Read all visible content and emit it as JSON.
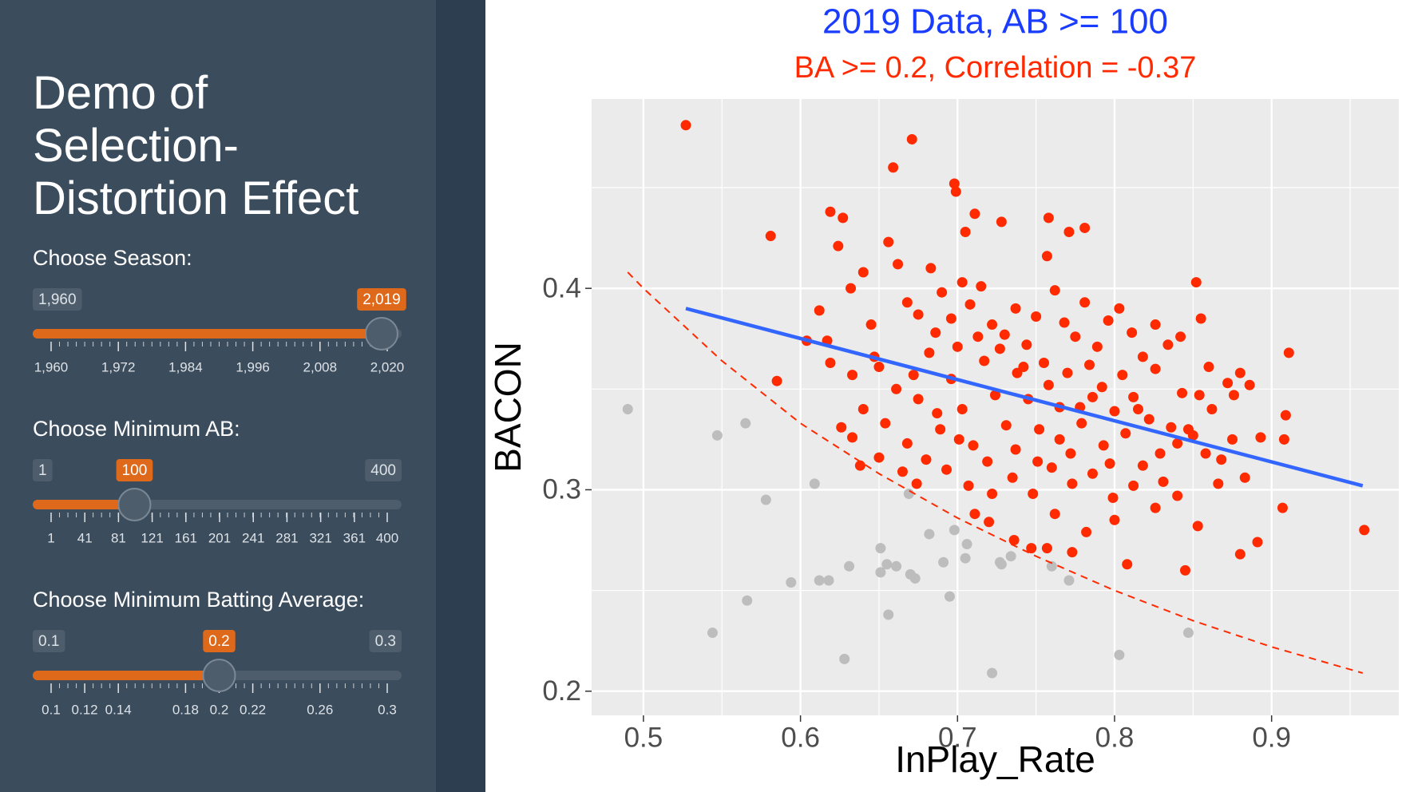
{
  "sidebar": {
    "title": "Demo of Selection-Distortion Effect",
    "sliders": [
      {
        "label": "Choose Season:",
        "min": {
          "value": 1960,
          "label": "1,960"
        },
        "value": {
          "value": 2019,
          "label": "2,019"
        },
        "ticks": [
          {
            "value": 1960,
            "label": "1,960"
          },
          {
            "value": 1972,
            "label": "1,972"
          },
          {
            "value": 1984,
            "label": "1,984"
          },
          {
            "value": 1996,
            "label": "1,996"
          },
          {
            "value": 2008,
            "label": "2,008"
          },
          {
            "value": 2020,
            "label": "2,020"
          }
        ]
      },
      {
        "label": "Choose Minimum AB:",
        "min": 1,
        "max": 400,
        "value": 100,
        "ticks": [
          1,
          41,
          81,
          121,
          161,
          201,
          241,
          281,
          321,
          361,
          400
        ]
      },
      {
        "label": "Choose Minimum Batting Average:",
        "min": 0.1,
        "max": 0.3,
        "value": 0.2,
        "ticks": [
          0.1,
          0.12,
          0.14,
          0.18,
          0.2,
          0.22,
          0.26,
          0.3
        ]
      }
    ]
  },
  "chart_data": {
    "type": "scatter",
    "title": "2019 Data, AB >= 100",
    "subtitle": "BA >= 0.2, Correlation = -0.37",
    "title_color": "#1a3cff",
    "subtitle_color": "#ff2a00",
    "x_label": "InPlay_Rate",
    "y_label": "BACON",
    "xlim": [
      0.467,
      0.981
    ],
    "ylim": [
      0.188,
      0.494
    ],
    "xticks": [
      0.5,
      0.6,
      0.7,
      0.8,
      0.9
    ],
    "yticks": [
      0.2,
      0.3,
      0.4
    ],
    "grid": true,
    "series": [
      {
        "color": "#bdbdbd",
        "x": [
          0.49,
          0.547,
          0.565,
          0.578,
          0.609,
          0.594,
          0.566,
          0.544,
          0.612,
          0.618,
          0.631,
          0.628,
          0.651,
          0.651,
          0.655,
          0.661,
          0.656,
          0.67,
          0.673,
          0.669,
          0.682,
          0.691,
          0.698,
          0.706,
          0.705,
          0.695,
          0.722,
          0.727,
          0.728,
          0.734,
          0.76,
          0.771,
          0.803,
          0.847
        ],
        "y": [
          0.34,
          0.327,
          0.333,
          0.295,
          0.303,
          0.254,
          0.245,
          0.229,
          0.255,
          0.255,
          0.262,
          0.216,
          0.271,
          0.259,
          0.263,
          0.262,
          0.238,
          0.258,
          0.256,
          0.298,
          0.278,
          0.264,
          0.28,
          0.273,
          0.266,
          0.247,
          0.209,
          0.264,
          0.263,
          0.267,
          0.262,
          0.255,
          0.218,
          0.229
        ]
      },
      {
        "color": "#ff2a00",
        "x": [
          0.527,
          0.581,
          0.585,
          0.671,
          0.659,
          0.619,
          0.627,
          0.624,
          0.656,
          0.698,
          0.699,
          0.711,
          0.728,
          0.758,
          0.771,
          0.781,
          0.705,
          0.959,
          0.911,
          0.907,
          0.845,
          0.808,
          0.757,
          0.773,
          0.747,
          0.72,
          0.711,
          0.674,
          0.638,
          0.88,
          0.883,
          0.891,
          0.604,
          0.612,
          0.617,
          0.632,
          0.64,
          0.645,
          0.65,
          0.662,
          0.668,
          0.675,
          0.683,
          0.69,
          0.696,
          0.703,
          0.708,
          0.715,
          0.722,
          0.73,
          0.737,
          0.744,
          0.75,
          0.757,
          0.762,
          0.768,
          0.775,
          0.781,
          0.789,
          0.796,
          0.803,
          0.811,
          0.818,
          0.826,
          0.834,
          0.842,
          0.852,
          0.855,
          0.86,
          0.872,
          0.88,
          0.886,
          0.893,
          0.909,
          0.908,
          0.875,
          0.866,
          0.858,
          0.85,
          0.843,
          0.836,
          0.829,
          0.822,
          0.815,
          0.807,
          0.8,
          0.793,
          0.786,
          0.779,
          0.772,
          0.765,
          0.758,
          0.752,
          0.745,
          0.738,
          0.731,
          0.724,
          0.717,
          0.71,
          0.703,
          0.696,
          0.689,
          0.682,
          0.675,
          0.668,
          0.661,
          0.654,
          0.647,
          0.64,
          0.633,
          0.626,
          0.619,
          0.633,
          0.65,
          0.665,
          0.68,
          0.693,
          0.707,
          0.722,
          0.735,
          0.748,
          0.76,
          0.773,
          0.786,
          0.799,
          0.812,
          0.826,
          0.84,
          0.853,
          0.8,
          0.782,
          0.762,
          0.736,
          0.792,
          0.805,
          0.818,
          0.831,
          0.847,
          0.862,
          0.876,
          0.727,
          0.742,
          0.755,
          0.77,
          0.784,
          0.713,
          0.7,
          0.686,
          0.672,
          0.737,
          0.751,
          0.719,
          0.701,
          0.687,
          0.765,
          0.778,
          0.797,
          0.812,
          0.826,
          0.84,
          0.854,
          0.868
        ],
        "y": [
          0.481,
          0.426,
          0.354,
          0.474,
          0.46,
          0.438,
          0.435,
          0.421,
          0.423,
          0.452,
          0.448,
          0.437,
          0.433,
          0.435,
          0.428,
          0.43,
          0.428,
          0.28,
          0.368,
          0.291,
          0.26,
          0.263,
          0.271,
          0.269,
          0.271,
          0.284,
          0.288,
          0.303,
          0.312,
          0.268,
          0.306,
          0.274,
          0.374,
          0.389,
          0.374,
          0.4,
          0.408,
          0.382,
          0.361,
          0.412,
          0.393,
          0.387,
          0.41,
          0.398,
          0.385,
          0.403,
          0.392,
          0.401,
          0.382,
          0.377,
          0.39,
          0.372,
          0.386,
          0.416,
          0.399,
          0.383,
          0.376,
          0.393,
          0.371,
          0.384,
          0.39,
          0.378,
          0.366,
          0.382,
          0.372,
          0.376,
          0.403,
          0.385,
          0.361,
          0.353,
          0.358,
          0.352,
          0.326,
          0.337,
          0.325,
          0.325,
          0.303,
          0.318,
          0.327,
          0.348,
          0.331,
          0.318,
          0.335,
          0.34,
          0.328,
          0.339,
          0.322,
          0.346,
          0.333,
          0.318,
          0.341,
          0.352,
          0.33,
          0.345,
          0.358,
          0.332,
          0.347,
          0.364,
          0.322,
          0.34,
          0.355,
          0.33,
          0.368,
          0.345,
          0.323,
          0.35,
          0.333,
          0.366,
          0.34,
          0.357,
          0.331,
          0.363,
          0.326,
          0.316,
          0.309,
          0.315,
          0.31,
          0.302,
          0.298,
          0.306,
          0.298,
          0.311,
          0.303,
          0.308,
          0.296,
          0.302,
          0.291,
          0.297,
          0.282,
          0.285,
          0.279,
          0.288,
          0.275,
          0.351,
          0.357,
          0.312,
          0.304,
          0.33,
          0.34,
          0.347,
          0.37,
          0.361,
          0.363,
          0.358,
          0.362,
          0.376,
          0.371,
          0.378,
          0.357,
          0.32,
          0.314,
          0.314,
          0.325,
          0.338,
          0.325,
          0.341,
          0.313,
          0.346,
          0.36,
          0.323,
          0.347,
          0.315
        ]
      },
      {
        "mode": "line",
        "color": "#3366ff",
        "x": [
          0.527,
          0.958
        ],
        "y": [
          0.39,
          0.302
        ]
      },
      {
        "mode": "line",
        "dash": true,
        "color": "#ff2a00",
        "x": [
          0.49,
          0.5,
          0.55,
          0.6,
          0.65,
          0.7,
          0.75,
          0.8,
          0.85,
          0.9,
          0.958
        ],
        "y": [
          0.408,
          0.4,
          0.364,
          0.333,
          0.308,
          0.286,
          0.267,
          0.25,
          0.235,
          0.222,
          0.209
        ]
      }
    ]
  }
}
